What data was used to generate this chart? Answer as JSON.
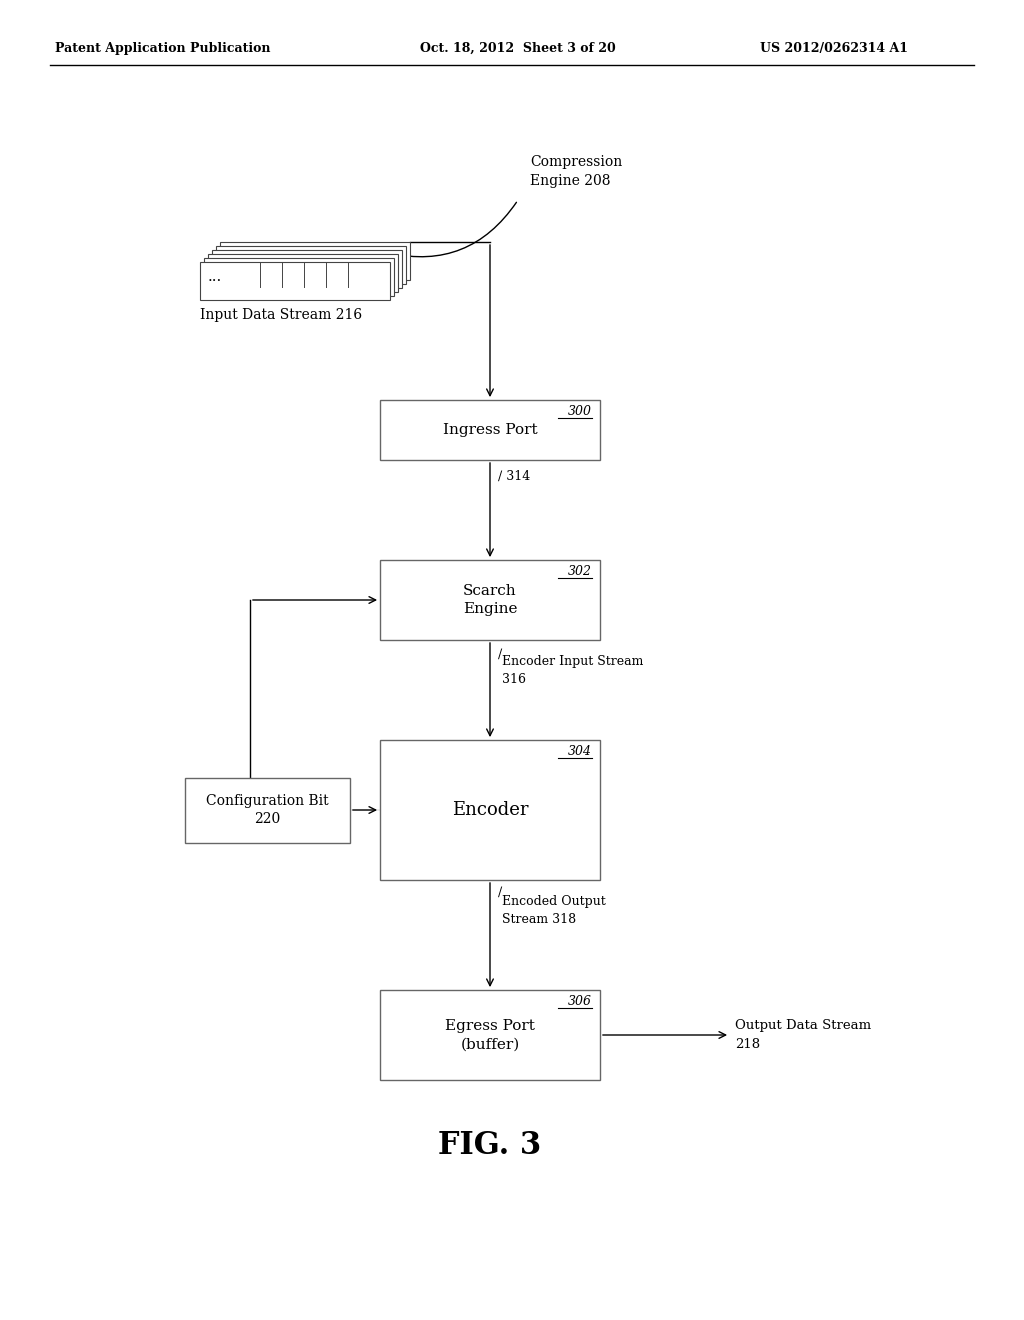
{
  "bg_color": "#ffffff",
  "header_left": "Patent Application Publication",
  "header_mid": "Oct. 18, 2012  Sheet 3 of 20",
  "header_right": "US 2012/0262314 A1",
  "fig_label": "FIG. 3",
  "compression_engine_label": "Compression\nEngine 208",
  "input_stream_label": "Input Data Stream 216",
  "ingress_port_label": "Ingress Port",
  "ingress_port_num": "300",
  "search_engine_label": "Scarch\nEngine",
  "search_engine_num": "302",
  "encoder_label": "Encoder",
  "encoder_num": "304",
  "encoder_input_stream_label": "Encoder Input Stream\n316",
  "config_bit_label": "Configuration Bit\n220",
  "encoded_output_label": "Encoded Output\nStream 318",
  "egress_port_label": "Egress Port\n(buffer)",
  "egress_port_num": "306",
  "output_stream_label": "Output Data Stream\n218",
  "stream_label_314": "314",
  "stream_curl": "ƒ"
}
